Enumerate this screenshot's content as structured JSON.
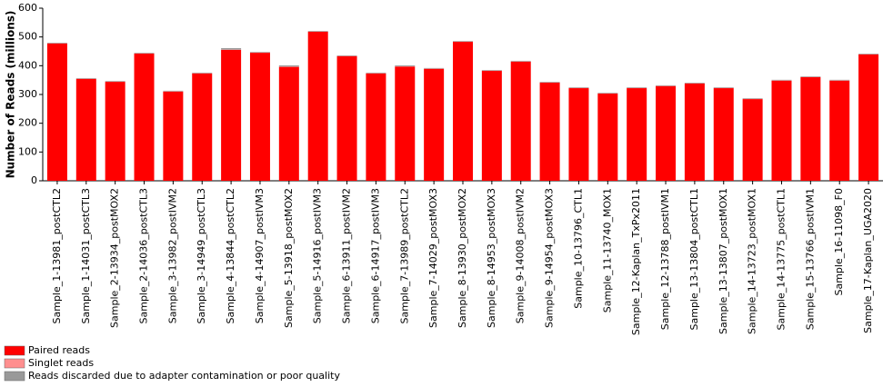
{
  "chart_data": {
    "type": "stacked_bar",
    "y_label": "Number of Reads (millions)",
    "categories": [
      "Sample_1-13981_postCTL2",
      "Sample_1-14031_postCTL3",
      "Sample_2-13934_postMOX2",
      "Sample_2-14036_postCTL3",
      "Sample_3-13982_postIVM2",
      "Sample_3-14949_postCTL3",
      "Sample_4-13844_postCTL2",
      "Sample_4-14907_postIVM3",
      "Sample_5-13918_postMOX2",
      "Sample_5-14916_postIVM3",
      "Sample_6-13911_postIVM2",
      "Sample_6-14917_postIVM3",
      "Sample_7-13989_postCTL2",
      "Sample_7-14029_postMOX3",
      "Sample_8-13930_postMOX2",
      "Sample_8-14953_postMOX3",
      "Sample_9-14008_postIVM2",
      "Sample_9-14954_postMOX3",
      "Sample_10-13796_CTL1",
      "Sample_11-13740_MOX1",
      "Sample_12-Kaplan_TxPx2011",
      "Sample_12-13788_postIVM1",
      "Sample_13-13804_postCTL1",
      "Sample_13-13807_postMOX1",
      "Sample_14-13723_postMOX1",
      "Sample_14-13775_postCTL1",
      "Sample_15-13766_postIVM1",
      "Sample_16-11098_F0",
      "Sample_17-Kaplan_UGA2020"
    ],
    "series": [
      {
        "name": "Paired reads",
        "color": "#ff0000",
        "values": [
          477,
          354,
          344,
          442,
          310,
          373,
          455,
          445,
          396,
          518,
          433,
          373,
          397,
          389,
          483,
          382,
          414,
          341,
          322,
          303,
          322,
          329,
          338,
          322,
          284,
          348,
          360,
          348,
          439
        ]
      },
      {
        "name": "Singlet reads",
        "color": "#ff8f8f",
        "values": [
          1,
          1,
          1,
          1,
          1,
          1,
          1,
          1,
          1,
          1,
          1,
          1,
          1,
          1,
          1,
          1,
          1,
          1,
          1,
          1,
          1,
          1,
          1,
          1,
          1,
          1,
          1,
          1,
          1
        ]
      },
      {
        "name": "Reads discarded due to adapter contamination or poor quality",
        "color": "#999999",
        "values": [
          2,
          2,
          2,
          2,
          2,
          2,
          5,
          2,
          4,
          2,
          2,
          2,
          3,
          2,
          2,
          2,
          2,
          2,
          2,
          2,
          2,
          2,
          2,
          2,
          2,
          2,
          2,
          2,
          2
        ]
      }
    ],
    "ylim": [
      0,
      600
    ],
    "yticks": [
      0,
      100,
      200,
      300,
      400,
      500,
      600
    ]
  }
}
